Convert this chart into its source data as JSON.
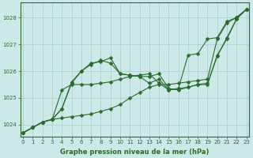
{
  "xlabel": "Graphe pression niveau de la mer (hPa)",
  "background_color": "#cce8e8",
  "line_color": "#2d6a2d",
  "grid_color": "#aacccc",
  "x_ticks": [
    0,
    1,
    2,
    3,
    4,
    5,
    6,
    7,
    8,
    9,
    10,
    11,
    12,
    13,
    14,
    15,
    16,
    17,
    18,
    19,
    20,
    21,
    22,
    23
  ],
  "y_ticks": [
    1024,
    1025,
    1026,
    1027,
    1028
  ],
  "ylim": [
    1023.55,
    1028.55
  ],
  "xlim": [
    -0.3,
    23.3
  ],
  "series": [
    [
      1023.7,
      1023.9,
      1024.1,
      1024.2,
      1024.25,
      1024.3,
      1024.35,
      1024.4,
      1024.5,
      1024.6,
      1024.75,
      1025.0,
      1025.2,
      1025.4,
      1025.5,
      1025.5,
      1025.55,
      1025.6,
      1025.65,
      1025.7,
      1027.2,
      1027.8,
      1028.0,
      1028.3
    ],
    [
      1023.7,
      1023.9,
      1024.1,
      1024.2,
      1024.6,
      1025.55,
      1026.0,
      1026.3,
      1026.35,
      1026.5,
      1025.9,
      1025.85,
      1025.8,
      1025.55,
      1025.7,
      1025.3,
      1025.35,
      1025.4,
      1025.5,
      1025.5,
      1026.6,
      1027.2,
      1027.95,
      1028.3
    ],
    [
      1023.7,
      1023.9,
      1024.1,
      1024.2,
      1024.6,
      1025.6,
      1026.0,
      1026.25,
      1026.4,
      1026.3,
      1025.9,
      1025.85,
      1025.8,
      1025.8,
      1025.9,
      1025.35,
      1025.3,
      1025.4,
      1025.5,
      1025.55,
      1026.55,
      1027.25,
      1027.95,
      1028.3
    ],
    [
      1023.7,
      1023.9,
      1024.1,
      1024.2,
      1025.3,
      1025.5,
      1025.5,
      1025.5,
      1025.55,
      1025.6,
      1025.7,
      1025.8,
      1025.85,
      1025.9,
      1025.55,
      1025.3,
      1025.35,
      1026.6,
      1026.65,
      1027.2,
      1027.25,
      1027.85,
      1028.0,
      1028.3
    ]
  ]
}
